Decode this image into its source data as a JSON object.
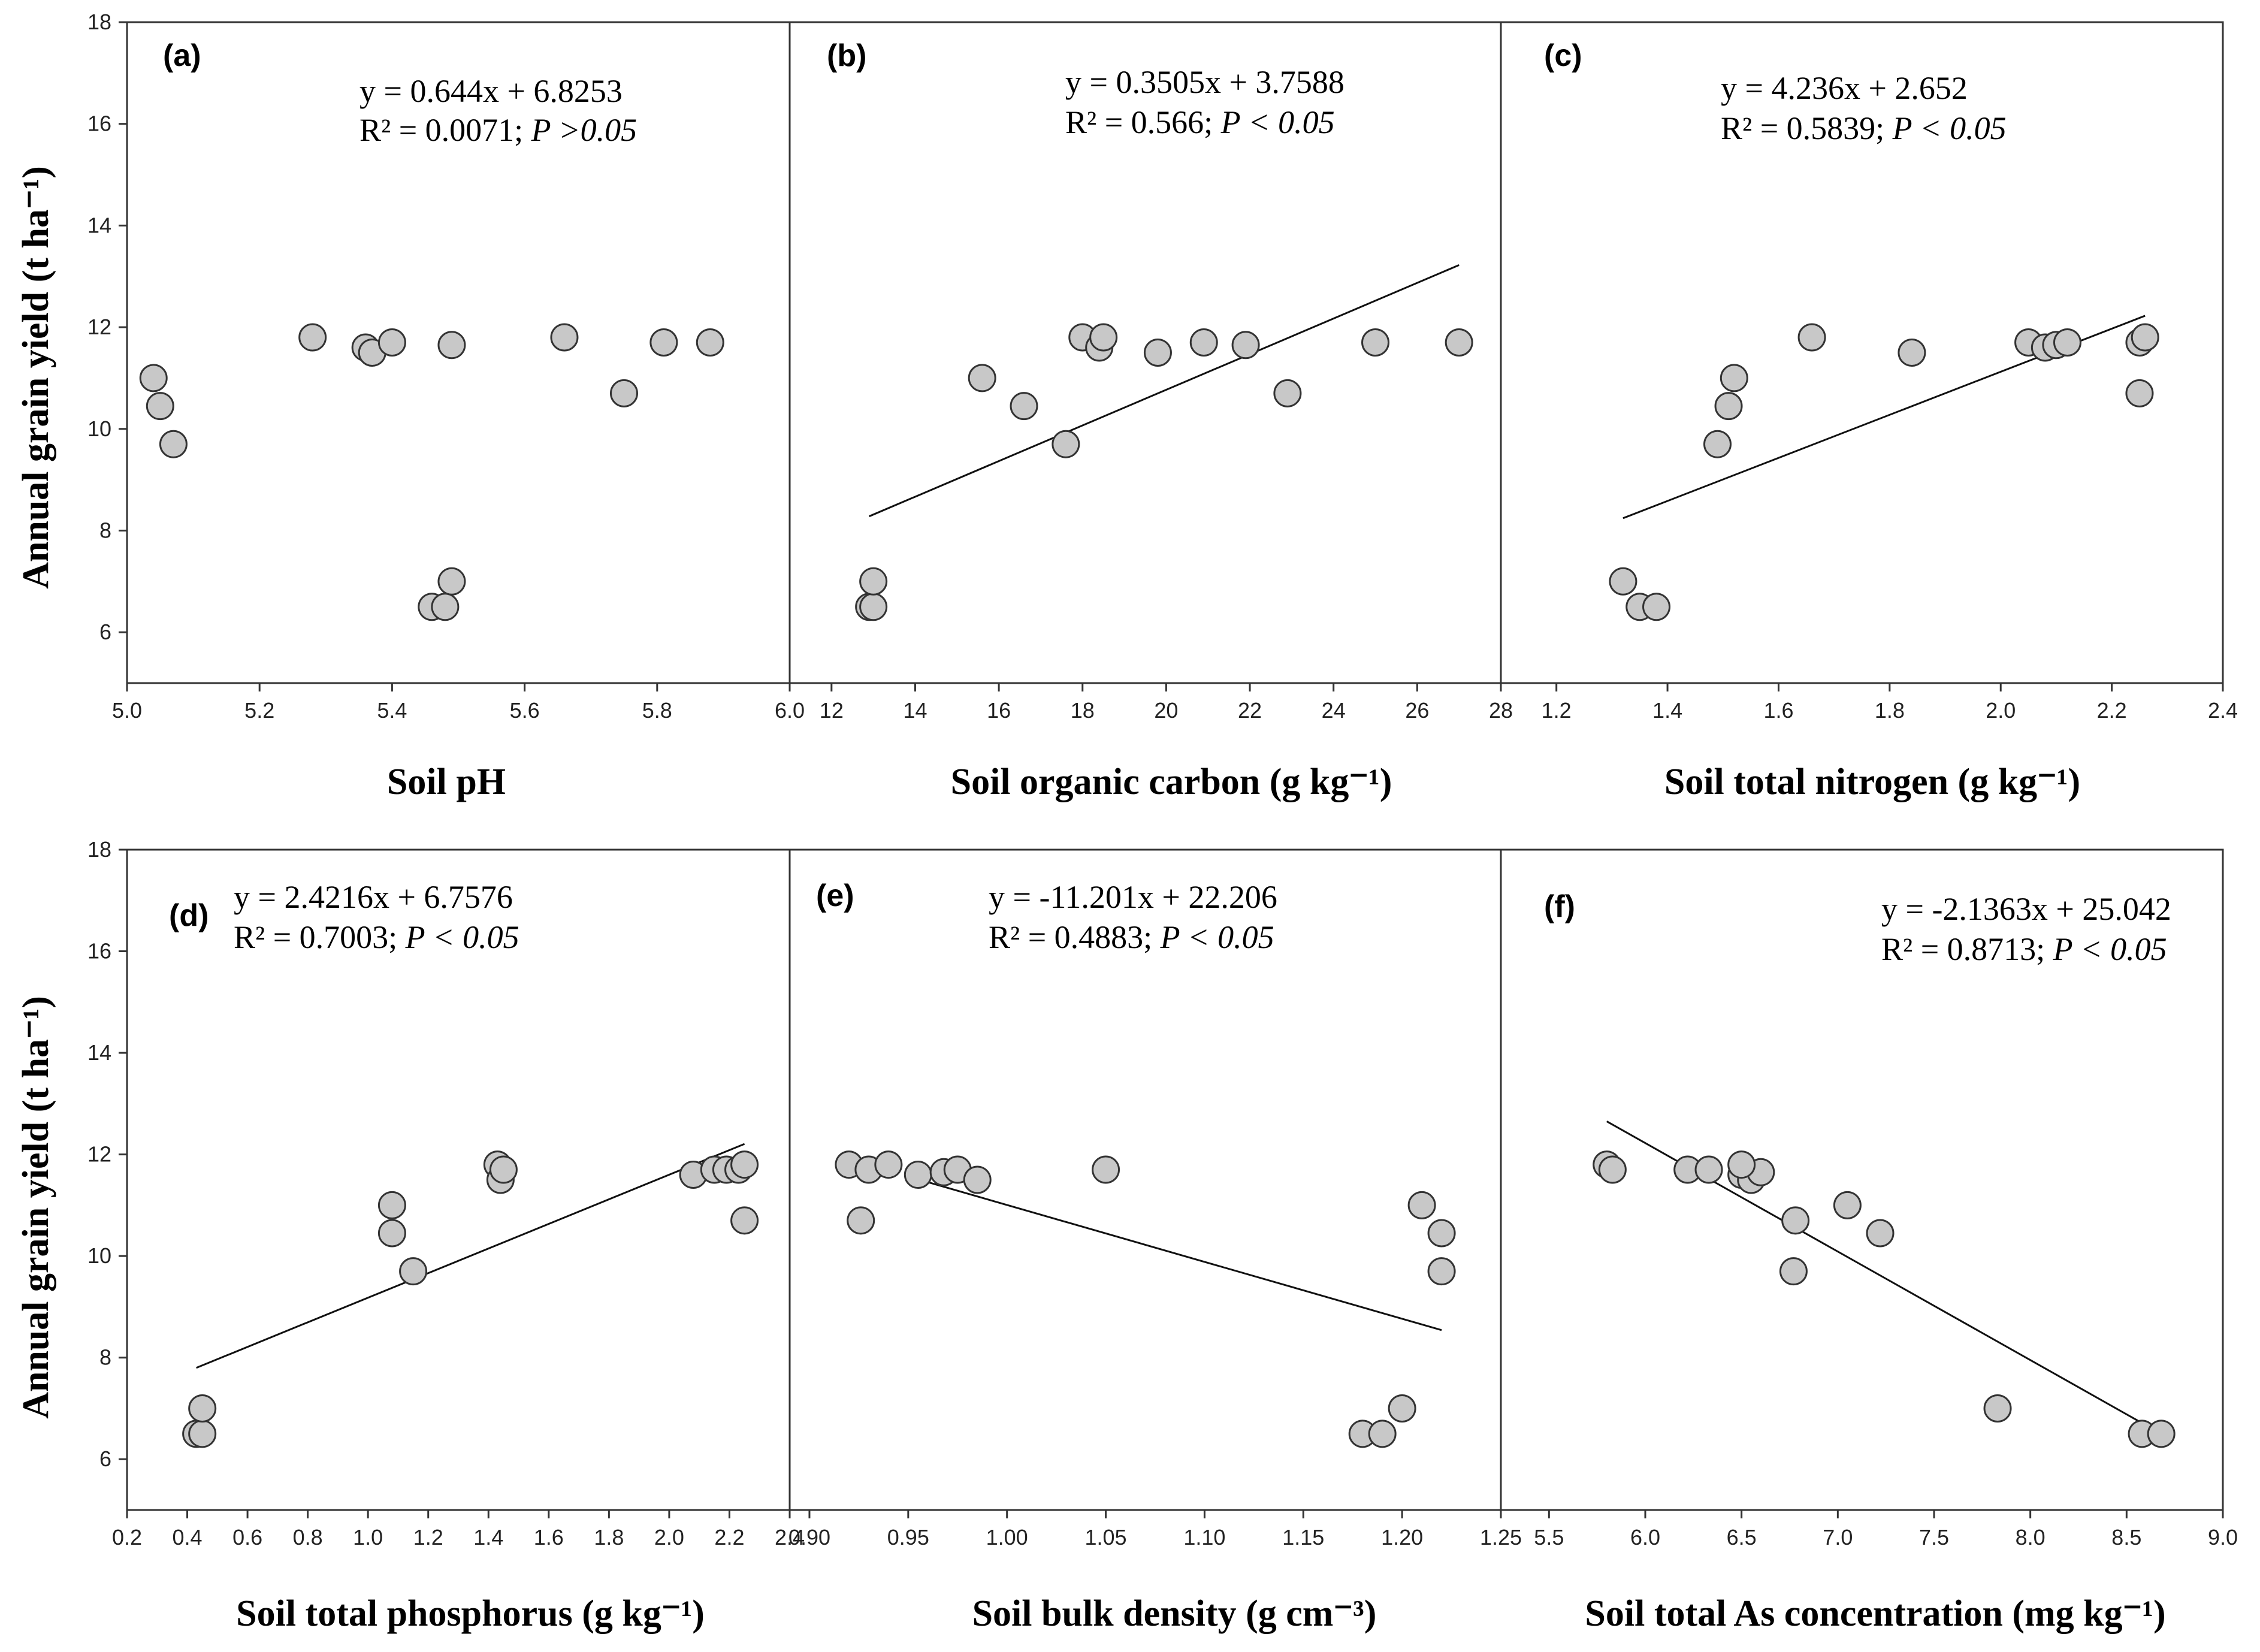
{
  "y_axis_label": "Annual grain yield (t ha⁻¹)",
  "ylim": [
    5,
    18
  ],
  "yticks": [
    6,
    8,
    10,
    12,
    14,
    16,
    18
  ],
  "colors": {
    "marker_fill": "#c8c8c8",
    "marker_stroke": "#333333",
    "line": "#111111",
    "axes": "#333333"
  },
  "chart_data": [
    {
      "type": "scatter",
      "label": "(a)",
      "xlabel": "Soil pH",
      "xlim": [
        5.0,
        6.0
      ],
      "xticks": [
        5.0,
        5.2,
        5.4,
        5.6,
        5.8,
        6.0
      ],
      "xtick_decimals": 1,
      "equation": "y = 0.644x + 6.8253",
      "r2_text": "R² = 0.0071; ",
      "p_text": "P >0.05",
      "fit": null,
      "points": [
        [
          5.04,
          11.0
        ],
        [
          5.05,
          10.45
        ],
        [
          5.07,
          9.7
        ],
        [
          5.28,
          11.8
        ],
        [
          5.36,
          11.6
        ],
        [
          5.37,
          11.5
        ],
        [
          5.4,
          11.7
        ],
        [
          5.46,
          6.5
        ],
        [
          5.48,
          6.5
        ],
        [
          5.49,
          7.0
        ],
        [
          5.49,
          11.65
        ],
        [
          5.66,
          11.8
        ],
        [
          5.75,
          10.7
        ],
        [
          5.81,
          11.7
        ],
        [
          5.88,
          11.7
        ]
      ]
    },
    {
      "type": "scatter",
      "label": "(b)",
      "xlabel": "Soil organic carbon (g kg⁻¹)",
      "xlim": [
        11,
        28
      ],
      "xticks": [
        12,
        14,
        16,
        18,
        20,
        22,
        24,
        26,
        28
      ],
      "xtick_decimals": 0,
      "equation": "y = 0.3505x + 3.7588",
      "r2_text": "R² = 0.566; ",
      "p_text": "P < 0.05",
      "fit": {
        "slope": 0.3505,
        "intercept": 3.7588,
        "x_range": [
          12.9,
          27.0
        ]
      },
      "points": [
        [
          12.9,
          6.5
        ],
        [
          13.0,
          6.5
        ],
        [
          13.0,
          7.0
        ],
        [
          15.6,
          11.0
        ],
        [
          16.6,
          10.45
        ],
        [
          17.6,
          9.7
        ],
        [
          18.0,
          11.8
        ],
        [
          18.4,
          11.6
        ],
        [
          18.5,
          11.8
        ],
        [
          19.8,
          11.5
        ],
        [
          20.9,
          11.7
        ],
        [
          21.9,
          11.65
        ],
        [
          22.9,
          10.7
        ],
        [
          25.0,
          11.7
        ],
        [
          27.0,
          11.7
        ]
      ]
    },
    {
      "type": "scatter",
      "label": "(c)",
      "xlabel": "Soil total nitrogen (g kg⁻¹)",
      "xlim": [
        1.1,
        2.4
      ],
      "xticks": [
        1.2,
        1.4,
        1.6,
        1.8,
        2.0,
        2.2,
        2.4
      ],
      "xtick_decimals": 1,
      "equation": "y = 4.236x + 2.652",
      "r2_text": "R² = 0.5839; ",
      "p_text": "P < 0.05",
      "fit": {
        "slope": 4.236,
        "intercept": 2.652,
        "x_range": [
          1.32,
          2.26
        ]
      },
      "points": [
        [
          1.32,
          7.0
        ],
        [
          1.35,
          6.5
        ],
        [
          1.38,
          6.5
        ],
        [
          1.49,
          9.7
        ],
        [
          1.51,
          10.45
        ],
        [
          1.52,
          11.0
        ],
        [
          1.66,
          11.8
        ],
        [
          1.84,
          11.5
        ],
        [
          2.05,
          11.7
        ],
        [
          2.08,
          11.6
        ],
        [
          2.1,
          11.65
        ],
        [
          2.12,
          11.7
        ],
        [
          2.25,
          10.7
        ],
        [
          2.25,
          11.7
        ],
        [
          2.26,
          11.8
        ]
      ]
    },
    {
      "type": "scatter",
      "label": "(d)",
      "xlabel": "Soil total phosphorus (g kg⁻¹)",
      "xlim": [
        0.2,
        2.4
      ],
      "xticks": [
        0.2,
        0.4,
        0.6,
        0.8,
        1.0,
        1.2,
        1.4,
        1.6,
        1.8,
        2.0,
        2.2,
        2.4
      ],
      "xtick_decimals": 1,
      "equation": "y = 2.4216x + 6.7576",
      "r2_text": "R² = 0.7003; ",
      "p_text": "P < 0.05",
      "fit": {
        "slope": 2.4216,
        "intercept": 6.7576,
        "x_range": [
          0.43,
          2.25
        ]
      },
      "points": [
        [
          0.43,
          6.5
        ],
        [
          0.45,
          6.5
        ],
        [
          0.45,
          7.0
        ],
        [
          1.08,
          11.0
        ],
        [
          1.08,
          10.45
        ],
        [
          1.15,
          9.7
        ],
        [
          1.43,
          11.8
        ],
        [
          1.44,
          11.5
        ],
        [
          1.45,
          11.7
        ],
        [
          2.08,
          11.6
        ],
        [
          2.15,
          11.7
        ],
        [
          2.19,
          11.7
        ],
        [
          2.23,
          11.7
        ],
        [
          2.25,
          11.8
        ],
        [
          2.25,
          10.7
        ]
      ]
    },
    {
      "type": "scatter",
      "label": "(e)",
      "xlabel": "Soil bulk density (g cm⁻³)",
      "xlim": [
        0.89,
        1.25
      ],
      "xticks": [
        0.9,
        0.95,
        1.0,
        1.05,
        1.1,
        1.15,
        1.2,
        1.25
      ],
      "xtick_decimals": 2,
      "equation": "y = -11.201x + 22.206",
      "r2_text": "R² = 0.4883; ",
      "p_text": "P < 0.05",
      "fit": {
        "slope": -11.201,
        "intercept": 22.206,
        "x_range": [
          0.955,
          1.22
        ]
      },
      "points": [
        [
          0.92,
          11.8
        ],
        [
          0.926,
          10.7
        ],
        [
          0.93,
          11.7
        ],
        [
          0.94,
          11.8
        ],
        [
          0.955,
          11.6
        ],
        [
          0.968,
          11.65
        ],
        [
          0.975,
          11.7
        ],
        [
          0.985,
          11.5
        ],
        [
          1.05,
          11.7
        ],
        [
          1.18,
          6.5
        ],
        [
          1.19,
          6.5
        ],
        [
          1.2,
          7.0
        ],
        [
          1.21,
          11.0
        ],
        [
          1.22,
          10.45
        ],
        [
          1.22,
          9.7
        ]
      ]
    },
    {
      "type": "scatter",
      "label": "(f)",
      "xlabel": "Soil total As concentration (mg kg⁻¹)",
      "xlim": [
        5.25,
        9.0
      ],
      "xticks": [
        5.5,
        6.0,
        6.5,
        7.0,
        7.5,
        8.0,
        8.5,
        9.0
      ],
      "xtick_decimals": 1,
      "equation": "y = -2.1363x + 25.042",
      "r2_text": "R² = 0.8713; ",
      "p_text": "P < 0.05",
      "fit": {
        "slope": -2.1363,
        "intercept": 25.042,
        "x_range": [
          5.8,
          8.62
        ]
      },
      "points": [
        [
          5.8,
          11.8
        ],
        [
          5.83,
          11.7
        ],
        [
          6.22,
          11.7
        ],
        [
          6.33,
          11.7
        ],
        [
          6.5,
          11.6
        ],
        [
          6.55,
          11.5
        ],
        [
          6.6,
          11.65
        ],
        [
          6.5,
          11.8
        ],
        [
          6.78,
          10.7
        ],
        [
          6.77,
          9.7
        ],
        [
          7.05,
          11.0
        ],
        [
          7.22,
          10.45
        ],
        [
          7.83,
          7.0
        ],
        [
          8.58,
          6.5
        ],
        [
          8.68,
          6.5
        ]
      ]
    }
  ]
}
